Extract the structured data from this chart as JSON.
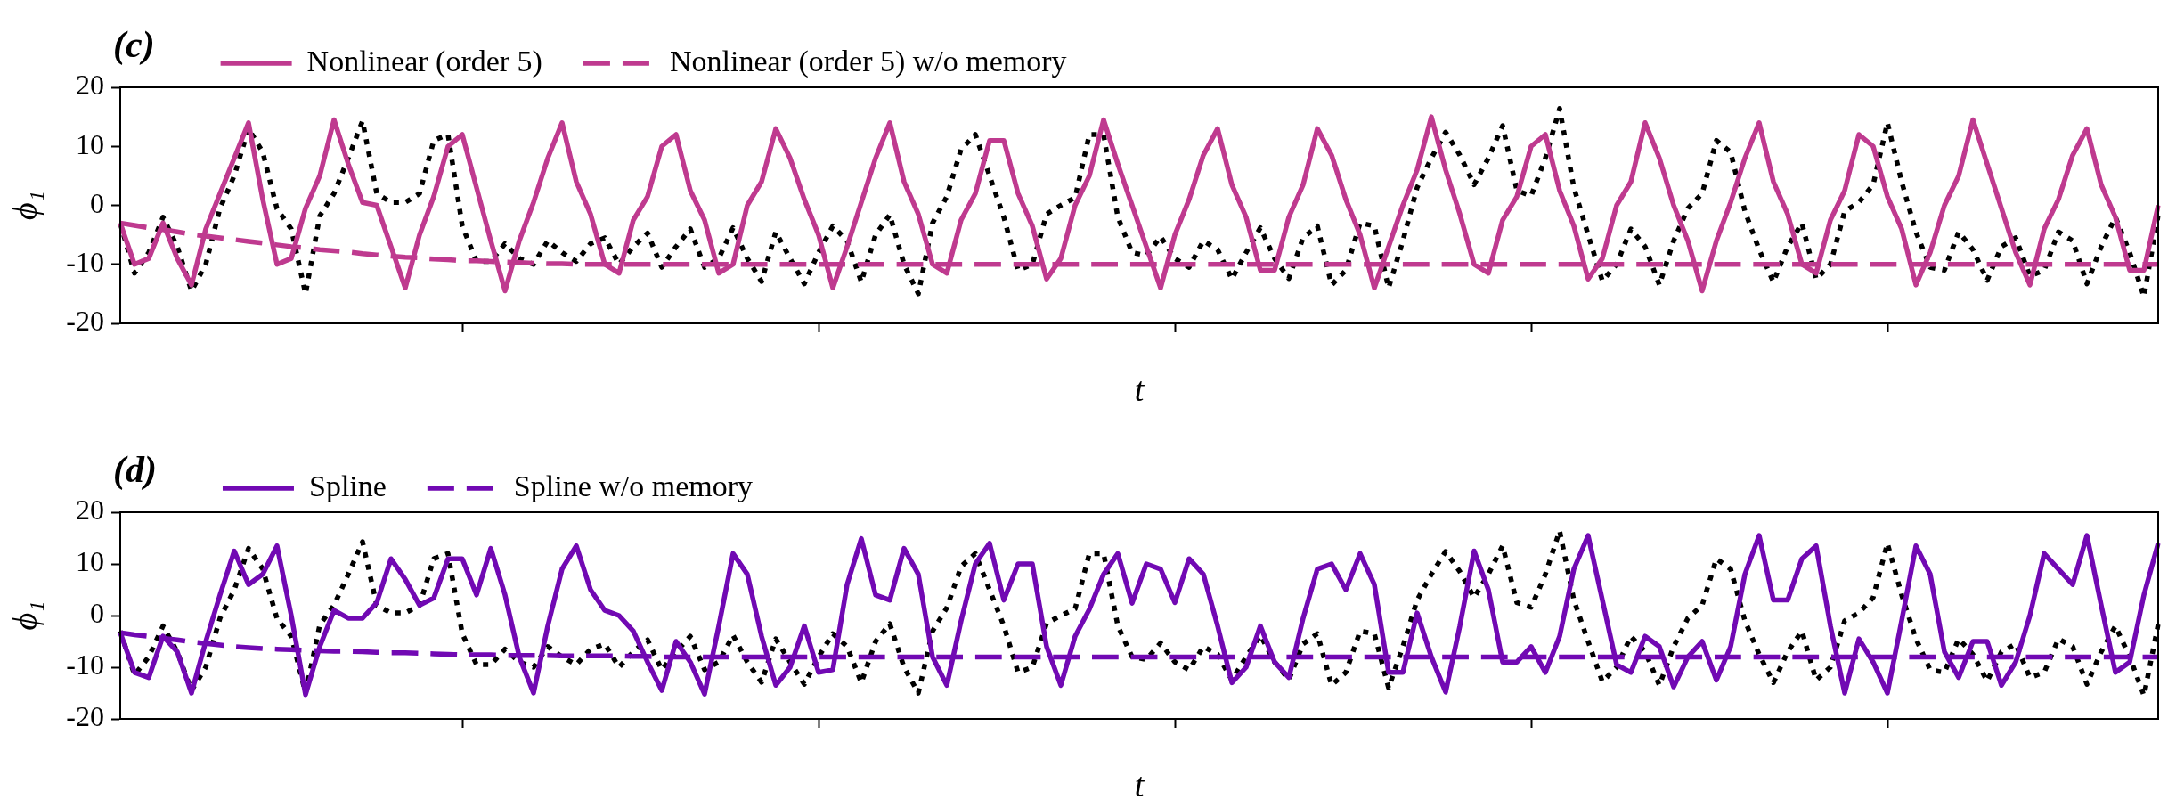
{
  "chart_data": [
    {
      "type": "line",
      "title": "(c)",
      "xlabel": "t",
      "ylabel": "ϕ₁",
      "categories": [
        null,
        null,
        null,
        null,
        null,
        null,
        null,
        null,
        null,
        null,
        null,
        null,
        null,
        null,
        null,
        null,
        null,
        null,
        null,
        null,
        null,
        null,
        null,
        null,
        null,
        null,
        null,
        null,
        null,
        null,
        null,
        null,
        null,
        null,
        null,
        null,
        null,
        null,
        null,
        null,
        null,
        null,
        null,
        null,
        null,
        null,
        null,
        null,
        null,
        null,
        null,
        null,
        null,
        null,
        null,
        null,
        null,
        null,
        null,
        null,
        null,
        null,
        null,
        null,
        null,
        null,
        null,
        null,
        null,
        null,
        null,
        null,
        null,
        null,
        null,
        null,
        null,
        null,
        null,
        null,
        null,
        null,
        null,
        null,
        null,
        null,
        null,
        null,
        null,
        null,
        null,
        null,
        null,
        null,
        null,
        null,
        null,
        null,
        null,
        null,
        null,
        null,
        null,
        null,
        null,
        null,
        null,
        null,
        null,
        null,
        null,
        null,
        null,
        null,
        null,
        null,
        null,
        null,
        null,
        null,
        null,
        null,
        null,
        null,
        null,
        null,
        null,
        null,
        null,
        null,
        null,
        null,
        null,
        null,
        null,
        null,
        null,
        null,
        null,
        null,
        null,
        null,
        null,
        null
      ],
      "ylim": [
        -20,
        20
      ],
      "yticks": [
        -20,
        -10,
        0,
        10,
        20
      ],
      "legend": "top left",
      "grid": false,
      "marker": "none",
      "series": [
        {
          "name": "Nonlinear (order 5)",
          "color": "#bf3a8f",
          "line_style": "solid",
          "values": [
            -3,
            -10,
            -9,
            -3,
            -9,
            -13.5,
            -4,
            2,
            8,
            14,
            1,
            -10,
            -9,
            -0.5,
            5,
            14.5,
            7,
            0.5,
            0,
            -7,
            -14,
            -5,
            1.5,
            10,
            12,
            3,
            -6,
            -14.5,
            -6,
            0.5,
            8,
            14,
            4,
            -1.5,
            -10,
            -11.5,
            -2.5,
            1.5,
            10,
            12,
            2.5,
            -2.5,
            -11.5,
            -10,
            0,
            4,
            13,
            8,
            1,
            -5,
            -14,
            -7,
            0.5,
            8,
            14,
            4,
            -1.5,
            -10,
            -11.5,
            -2.5,
            2,
            11,
            11,
            2,
            -3.5,
            -12.5,
            -9,
            0,
            5,
            14.5,
            7,
            0,
            -7,
            -14,
            -5,
            1,
            8.5,
            13,
            3.5,
            -2,
            -11,
            -11,
            -2,
            3.5,
            13,
            8.5,
            1,
            -5,
            -14,
            -7,
            0,
            6,
            15,
            6,
            -1.5,
            -10,
            -11.5,
            -2.5,
            1.5,
            10,
            12,
            2.5,
            -3.5,
            -12.5,
            -9,
            0,
            4,
            14,
            8,
            0,
            -6,
            -14.5,
            -6,
            0.5,
            8,
            14,
            4,
            -1.5,
            -10,
            -11.5,
            -2.5,
            2.5,
            12,
            10,
            1.5,
            -4,
            -13.5,
            -8,
            0,
            5,
            14.5,
            7,
            -0.5,
            -8,
            -13.5,
            -4,
            1,
            8.5,
            13,
            3.5,
            -2,
            -11,
            -11,
            0
          ]
        },
        {
          "name": "Nonlinear (order 5) w/o memory",
          "color": "#bf3a8f",
          "line_style": "dashed",
          "values": [
            -3,
            -3.4,
            -3.8,
            -4.1,
            -4.5,
            -4.9,
            -5.2,
            -5.5,
            -5.8,
            -6.1,
            -6.4,
            -6.7,
            -7,
            -7.2,
            -7.5,
            -7.7,
            -7.9,
            -8.2,
            -8.4,
            -8.6,
            -8.8,
            -8.9,
            -9.1,
            -9.2,
            -9.4,
            -9.4,
            -9.5,
            -9.6,
            -9.7,
            -9.8,
            -9.9,
            -9.9,
            -10,
            -10,
            -10,
            -10,
            -10,
            -10,
            -10,
            -10,
            -10,
            -10,
            -10,
            -10,
            -10,
            -10,
            -10,
            -10,
            -10,
            -10,
            -10,
            -10,
            -10,
            -10,
            -10,
            -10,
            -10,
            -10,
            -10,
            -10,
            -10,
            -10,
            -10,
            -10,
            -10,
            -10,
            -10,
            -10,
            -10,
            -10,
            -10,
            -10,
            -10,
            -10,
            -10,
            -10,
            -10,
            -10,
            -10,
            -10,
            -10,
            -10,
            -10,
            -10,
            -10,
            -10,
            -10,
            -10,
            -10,
            -10,
            -10,
            -10,
            -10,
            -10,
            -10,
            -10,
            -10,
            -10,
            -10,
            -10,
            -10,
            -10,
            -10,
            -10,
            -10,
            -10,
            -10,
            -10,
            -10,
            -10,
            -10,
            -10,
            -10,
            -10,
            -10,
            -10,
            -10,
            -10,
            -10,
            -10,
            -10,
            -10,
            -10,
            -10,
            -10,
            -10,
            -10,
            -10,
            -10,
            -10,
            -10,
            -10,
            -10,
            -10,
            -10,
            -10,
            -10,
            -10,
            -10,
            -10,
            -10,
            -10,
            -10,
            -10
          ]
        },
        {
          "color": "#000000",
          "line_style": "dotted",
          "values": [
            -3,
            -11.5,
            -8,
            -2,
            -7,
            -14.5,
            -10,
            -0.5,
            5,
            13,
            9,
            -0.6,
            -4,
            -15,
            -1.8,
            2,
            8,
            14.3,
            2,
            0.5,
            0.5,
            2,
            11,
            12,
            -3.5,
            -9.5,
            -9.5,
            -6.5,
            -9,
            -10,
            -6,
            -8,
            -9.5,
            -6.5,
            -5.5,
            -10,
            -7,
            -4.7,
            -10.5,
            -7,
            -4,
            -10.5,
            -9,
            -3.8,
            -9,
            -12.9,
            -4.5,
            -9,
            -13.3,
            -8,
            -3.5,
            -6,
            -13,
            -5,
            -1.6,
            -10,
            -15,
            -3,
            1.5,
            9.5,
            12,
            5,
            -2,
            -11,
            -10,
            -1.5,
            0,
            1.3,
            12,
            12,
            -2,
            -8,
            -8.5,
            -5.3,
            -9,
            -10.5,
            -6,
            -7.5,
            -12.5,
            -8,
            -3.8,
            -9,
            -12.4,
            -5.5,
            -3.5,
            -13.5,
            -11,
            -3,
            -3.5,
            -14,
            -6,
            3,
            8,
            12.4,
            8.5,
            3.5,
            8,
            13.5,
            2.5,
            1.6,
            8,
            16.4,
            3,
            -5,
            -12.8,
            -10,
            -4,
            -7,
            -13.5,
            -6,
            -0.5,
            2,
            11,
            9,
            -1,
            -7.5,
            -13,
            -7,
            -3,
            -12.5,
            -10,
            -1,
            0.5,
            3.5,
            14,
            4,
            -4.5,
            -10.5,
            -11,
            -4.5,
            -7.5,
            -12.7,
            -7,
            -5.5,
            -12,
            -11,
            -4.5,
            -6,
            -13.3,
            -7,
            -2,
            -8,
            -15.5,
            -1.7
          ]
        }
      ]
    },
    {
      "type": "line",
      "title": "(d)",
      "xlabel": "t",
      "ylabel": "ϕ₁",
      "categories": [
        null,
        null,
        null,
        null,
        null,
        null,
        null,
        null,
        null,
        null,
        null,
        null,
        null,
        null,
        null,
        null,
        null,
        null,
        null,
        null,
        null,
        null,
        null,
        null,
        null,
        null,
        null,
        null,
        null,
        null,
        null,
        null,
        null,
        null,
        null,
        null,
        null,
        null,
        null,
        null,
        null,
        null,
        null,
        null,
        null,
        null,
        null,
        null,
        null,
        null,
        null,
        null,
        null,
        null,
        null,
        null,
        null,
        null,
        null,
        null,
        null,
        null,
        null,
        null,
        null,
        null,
        null,
        null,
        null,
        null,
        null,
        null,
        null,
        null,
        null,
        null,
        null,
        null,
        null,
        null,
        null,
        null,
        null,
        null,
        null,
        null,
        null,
        null,
        null,
        null,
        null,
        null,
        null,
        null,
        null,
        null,
        null,
        null,
        null,
        null,
        null,
        null,
        null,
        null,
        null,
        null,
        null,
        null,
        null,
        null,
        null,
        null,
        null,
        null,
        null,
        null,
        null,
        null,
        null,
        null,
        null,
        null,
        null,
        null,
        null,
        null,
        null,
        null,
        null,
        null,
        null,
        null,
        null,
        null,
        null,
        null,
        null,
        null,
        null,
        null,
        null,
        null,
        null,
        null
      ],
      "ylim": [
        -20,
        20
      ],
      "yticks": [
        -20,
        -10,
        0,
        10,
        20
      ],
      "legend": "top left",
      "grid": false,
      "marker": "none",
      "series": [
        {
          "name": "Spline",
          "color": "#7109b3",
          "line_style": "solid",
          "values": [
            -3.3,
            -11,
            -12,
            -4,
            -7,
            -15,
            -5,
            4,
            12.5,
            6,
            8,
            13.5,
            0,
            -15.3,
            -6,
            1,
            -0.5,
            -0.5,
            2.5,
            11,
            7,
            2,
            3.4,
            11,
            11,
            4,
            13,
            4,
            -8,
            -15,
            -2,
            9,
            13.5,
            5,
            1,
            0,
            -3,
            -9,
            -14.5,
            -5,
            -9,
            -15.2,
            -2,
            12,
            8,
            -4,
            -13.5,
            -10,
            -2,
            -11,
            -10.5,
            6,
            14.9,
            4,
            3,
            13,
            8,
            -8,
            -13.5,
            -1,
            10,
            14,
            3,
            10,
            10,
            -6,
            -13.5,
            -4,
            1.2,
            8,
            12,
            2.4,
            10,
            9,
            2.5,
            11,
            8,
            -2,
            -13,
            -10,
            -2,
            -9,
            -12,
            -0.5,
            9,
            10,
            5,
            12,
            6,
            -11,
            -11,
            0.5,
            -8,
            -14.8,
            -2,
            12.5,
            5,
            -9,
            -9,
            -6,
            -11,
            -4,
            9,
            15.5,
            3,
            -9.5,
            -11,
            -4,
            -6,
            -13.8,
            -8,
            -5,
            -12.5,
            -6,
            8,
            15.5,
            3,
            3,
            11,
            13.5,
            -2,
            -15,
            -4.5,
            -9,
            -15,
            -1,
            13.5,
            8,
            -7,
            -12,
            -5,
            -5,
            -13.5,
            -9,
            0,
            12,
            9,
            6,
            15.5,
            2,
            -11,
            -9,
            4,
            14
          ]
        },
        {
          "name": "Spline w/o memory",
          "color": "#7109b3",
          "line_style": "dashed",
          "values": [
            -3.3,
            -3.7,
            -4,
            -4.4,
            -4.7,
            -5.1,
            -5.4,
            -5.7,
            -6,
            -6.2,
            -6.4,
            -6.5,
            -6.6,
            -6.7,
            -6.8,
            -6.9,
            -6.9,
            -7,
            -7.1,
            -7.2,
            -7.2,
            -7.3,
            -7.4,
            -7.5,
            -7.6,
            -7.6,
            -7.6,
            -7.7,
            -7.7,
            -7.7,
            -7.7,
            -7.8,
            -7.8,
            -7.8,
            -7.8,
            -7.8,
            -7.9,
            -7.9,
            -8,
            -8,
            -8,
            -8,
            -8,
            -8,
            -8,
            -8,
            -8,
            -8,
            -8,
            -8,
            -8,
            -8,
            -8,
            -8,
            -8,
            -8,
            -8,
            -8,
            -8,
            -8,
            -8,
            -8,
            -8,
            -8,
            -8,
            -8,
            -8,
            -8,
            -8,
            -8,
            -8,
            -8,
            -8,
            -8,
            -8,
            -8,
            -8,
            -8,
            -8,
            -8,
            -8,
            -8,
            -8,
            -8,
            -8,
            -8,
            -8,
            -8,
            -8,
            -8,
            -8,
            -8,
            -8,
            -8,
            -8,
            -8,
            -8,
            -8,
            -8,
            -8,
            -8,
            -8,
            -8,
            -8,
            -8,
            -8,
            -8,
            -8,
            -8,
            -8,
            -8,
            -8,
            -8,
            -8,
            -8,
            -8,
            -8,
            -8,
            -8,
            -8,
            -8,
            -8,
            -8,
            -8,
            -8,
            -8,
            -8,
            -8,
            -8,
            -8,
            -8,
            -8,
            -8,
            -8,
            -8,
            -8,
            -8,
            -8,
            -8,
            -8,
            -8,
            -8,
            -8,
            -8
          ]
        },
        {
          "color": "#000000",
          "line_style": "dotted",
          "values": [
            -3,
            -11.5,
            -8,
            -2,
            -7,
            -14.5,
            -10,
            -0.5,
            5,
            13,
            9,
            -0.6,
            -4,
            -15,
            -1.8,
            2,
            8,
            14.3,
            2,
            0.5,
            0.5,
            2,
            11,
            12,
            -3.5,
            -9.5,
            -9.5,
            -6.5,
            -9,
            -10,
            -6,
            -8,
            -9.5,
            -6.5,
            -5.5,
            -10,
            -7,
            -4.7,
            -10.5,
            -7,
            -4,
            -10.5,
            -9,
            -3.8,
            -9,
            -12.9,
            -4.5,
            -9,
            -13.3,
            -8,
            -3.5,
            -6,
            -13,
            -5,
            -1.6,
            -10,
            -15,
            -3,
            1.5,
            9.5,
            12,
            5,
            -2,
            -11,
            -10,
            -1.5,
            0,
            1.3,
            12,
            12,
            -2,
            -8,
            -8.5,
            -5.3,
            -9,
            -10.5,
            -6,
            -7.5,
            -12.5,
            -8,
            -3.8,
            -9,
            -12.4,
            -5.5,
            -3.5,
            -13.5,
            -11,
            -3,
            -3.5,
            -14,
            -6,
            3,
            8,
            12.4,
            8.5,
            3.5,
            8,
            13.5,
            2.5,
            1.6,
            8,
            16.4,
            3,
            -5,
            -12.8,
            -10,
            -4,
            -7,
            -13.5,
            -6,
            -0.5,
            2,
            11,
            9,
            -1,
            -7.5,
            -13,
            -7,
            -3,
            -12.5,
            -10,
            -1,
            0.5,
            3.5,
            14,
            4,
            -4.5,
            -10.5,
            -11,
            -4.5,
            -7.5,
            -12.7,
            -7,
            -5.5,
            -12,
            -11,
            -4.5,
            -6,
            -13.3,
            -7,
            -2,
            -8,
            -15.5,
            -1.7
          ]
        }
      ]
    }
  ]
}
